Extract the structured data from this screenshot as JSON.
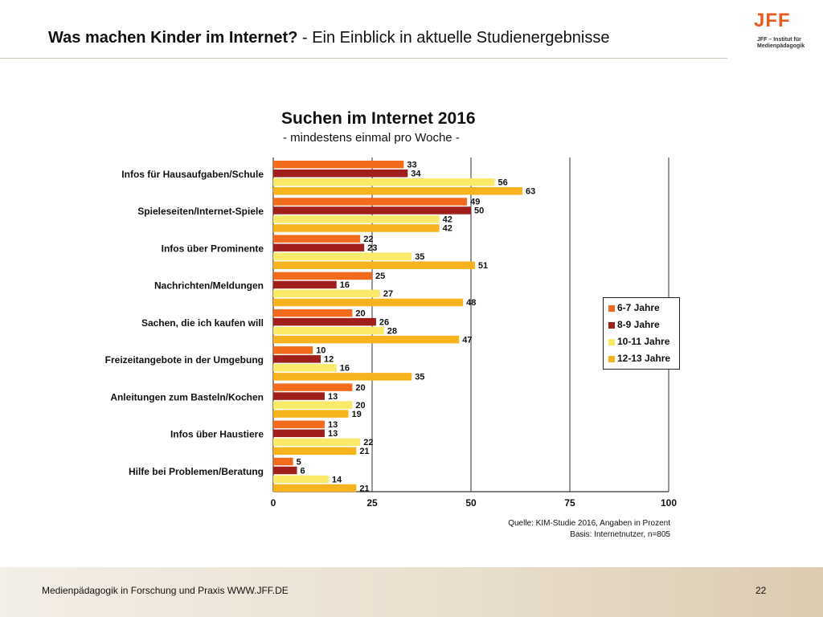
{
  "slide": {
    "title_bold": "Was machen Kinder im Internet?",
    "title_rest": " - Ein Einblick in aktuelle Studienergebnisse",
    "logo_text": "JFF",
    "logo_sub": "JFF – Institut für Medienpädagogik",
    "footer_text": "Medienpädagogik in Forschung und Praxis WWW.JFF.DE",
    "page_number": "22"
  },
  "chart_data": {
    "type": "bar",
    "orientation": "horizontal",
    "title": "Suchen im Internet 2016",
    "subtitle": "- mindestens einmal pro Woche -",
    "categories": [
      "Infos für Hausaufgaben/Schule",
      "Spieleseiten/Internet-Spiele",
      "Infos über Prominente",
      "Nachrichten/Meldungen",
      "Sachen, die ich kaufen will",
      "Freizeitangebote in der Umgebung",
      "Anleitungen zum Basteln/Kochen",
      "Infos über Haustiere",
      "Hilfe bei Problemen/Beratung"
    ],
    "series": [
      {
        "name": "6-7 Jahre",
        "color": "#f26a1b",
        "values": [
          33,
          49,
          22,
          25,
          20,
          10,
          20,
          13,
          5
        ]
      },
      {
        "name": "8-9 Jahre",
        "color": "#a01f1a",
        "values": [
          34,
          50,
          23,
          16,
          26,
          12,
          13,
          13,
          6
        ]
      },
      {
        "name": "10-11 Jahre",
        "color": "#fbe96a",
        "values": [
          56,
          42,
          35,
          27,
          28,
          16,
          20,
          22,
          14
        ]
      },
      {
        "name": "12-13 Jahre",
        "color": "#f7b31d",
        "values": [
          63,
          42,
          51,
          48,
          47,
          35,
          19,
          21,
          21
        ]
      }
    ],
    "xlim": [
      0,
      100
    ],
    "xticks": [
      0,
      25,
      50,
      75,
      100
    ],
    "grid": true,
    "legend_position": "right",
    "source_line1": "Quelle: KIM-Studie 2016, Angaben in Prozent",
    "source_line2": "Basis: Internetnutzer, n=805"
  }
}
